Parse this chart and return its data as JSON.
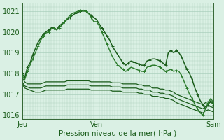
{
  "title": "Pression niveau de la mer( hPa )",
  "bg_color": "#daf0e4",
  "grid_color": "#aacfbc",
  "line_color_dark": "#1a5c1a",
  "line_color_med": "#2a7a2a",
  "ylim": [
    1015.8,
    1021.4
  ],
  "yticks": [
    1016,
    1017,
    1018,
    1019,
    1020,
    1021
  ],
  "n_points": 73,
  "ven_idx": 28,
  "sam_idx": 72,
  "xtick_positions": [
    0,
    28,
    72
  ],
  "xtick_labels": [
    "Jeu",
    "Ven",
    "Sam"
  ],
  "series": {
    "s0": [
      1018.0,
      1017.8,
      1018.3,
      1018.5,
      1018.9,
      1019.2,
      1019.5,
      1019.7,
      1019.9,
      1020.0,
      1020.1,
      1020.2,
      1020.2,
      1020.1,
      1020.3,
      1020.4,
      1020.5,
      1020.6,
      1020.7,
      1020.8,
      1020.9,
      1020.95,
      1021.0,
      1021.05,
      1021.0,
      1020.9,
      1020.8,
      1020.7,
      1020.6,
      1020.4,
      1020.2,
      1020.0,
      1019.8,
      1019.6,
      1019.3,
      1019.1,
      1018.9,
      1018.7,
      1018.5,
      1018.4,
      1018.5,
      1018.6,
      1018.55,
      1018.5,
      1018.45,
      1018.4,
      1018.4,
      1018.6,
      1018.65,
      1018.7,
      1018.7,
      1018.65,
      1018.6,
      1018.5,
      1018.4,
      1019.0,
      1019.1,
      1019.0,
      1019.1,
      1019.0,
      1018.8,
      1018.5,
      1018.2,
      1018.0,
      1017.7,
      1017.3,
      1017.0,
      1016.7,
      1016.5,
      1016.3,
      1016.5,
      1016.7,
      1016.5
    ],
    "s1": [
      1017.9,
      1017.7,
      1018.1,
      1018.4,
      1018.7,
      1019.0,
      1019.3,
      1019.6,
      1019.8,
      1019.95,
      1020.0,
      1020.15,
      1020.2,
      1020.1,
      1020.2,
      1020.35,
      1020.5,
      1020.65,
      1020.8,
      1020.9,
      1020.95,
      1021.0,
      1021.05,
      1021.0,
      1021.0,
      1020.9,
      1020.7,
      1020.5,
      1020.5,
      1020.3,
      1020.0,
      1019.7,
      1019.4,
      1019.1,
      1018.8,
      1018.6,
      1018.4,
      1018.3,
      1018.2,
      1018.1,
      1018.2,
      1018.3,
      1018.25,
      1018.2,
      1018.15,
      1018.1,
      1018.1,
      1018.3,
      1018.35,
      1018.4,
      1018.4,
      1018.35,
      1018.3,
      1018.2,
      1018.1,
      1018.15,
      1018.2,
      1018.1,
      1018.15,
      1018.1,
      1017.9,
      1017.6,
      1017.3,
      1017.0,
      1016.8,
      1016.5,
      1016.3,
      1016.1,
      1016.0,
      1016.3,
      1016.6,
      1016.8,
      1016.6
    ],
    "s2": [
      1017.8,
      1017.6,
      1017.5,
      1017.5,
      1017.5,
      1017.5,
      1017.5,
      1017.5,
      1017.55,
      1017.6,
      1017.6,
      1017.6,
      1017.6,
      1017.6,
      1017.6,
      1017.6,
      1017.6,
      1017.65,
      1017.65,
      1017.65,
      1017.65,
      1017.65,
      1017.65,
      1017.65,
      1017.65,
      1017.65,
      1017.6,
      1017.6,
      1017.6,
      1017.6,
      1017.6,
      1017.6,
      1017.6,
      1017.6,
      1017.55,
      1017.55,
      1017.55,
      1017.55,
      1017.5,
      1017.5,
      1017.5,
      1017.5,
      1017.5,
      1017.5,
      1017.45,
      1017.45,
      1017.4,
      1017.4,
      1017.4,
      1017.3,
      1017.3,
      1017.3,
      1017.25,
      1017.25,
      1017.2,
      1017.2,
      1017.15,
      1017.1,
      1017.0,
      1016.95,
      1016.9,
      1016.85,
      1016.8,
      1016.75,
      1016.7,
      1016.65,
      1016.6,
      1016.55,
      1016.5,
      1016.6,
      1016.65,
      1016.6,
      1016.55
    ],
    "s3": [
      1017.6,
      1017.4,
      1017.35,
      1017.3,
      1017.3,
      1017.3,
      1017.3,
      1017.3,
      1017.35,
      1017.4,
      1017.4,
      1017.4,
      1017.4,
      1017.4,
      1017.4,
      1017.4,
      1017.4,
      1017.45,
      1017.45,
      1017.45,
      1017.45,
      1017.45,
      1017.45,
      1017.45,
      1017.45,
      1017.45,
      1017.4,
      1017.4,
      1017.4,
      1017.4,
      1017.4,
      1017.4,
      1017.4,
      1017.4,
      1017.35,
      1017.35,
      1017.35,
      1017.35,
      1017.3,
      1017.3,
      1017.3,
      1017.3,
      1017.3,
      1017.3,
      1017.25,
      1017.25,
      1017.2,
      1017.2,
      1017.2,
      1017.1,
      1017.1,
      1017.1,
      1017.05,
      1017.05,
      1017.0,
      1017.0,
      1016.95,
      1016.9,
      1016.8,
      1016.75,
      1016.7,
      1016.65,
      1016.6,
      1016.55,
      1016.5,
      1016.45,
      1016.4,
      1016.35,
      1016.3,
      1016.4,
      1016.45,
      1016.4,
      1016.35
    ],
    "s4": [
      1017.5,
      1017.3,
      1017.25,
      1017.2,
      1017.15,
      1017.1,
      1017.1,
      1017.1,
      1017.15,
      1017.2,
      1017.2,
      1017.2,
      1017.2,
      1017.2,
      1017.2,
      1017.2,
      1017.2,
      1017.25,
      1017.25,
      1017.25,
      1017.25,
      1017.25,
      1017.25,
      1017.25,
      1017.25,
      1017.25,
      1017.2,
      1017.2,
      1017.2,
      1017.2,
      1017.2,
      1017.2,
      1017.2,
      1017.2,
      1017.15,
      1017.15,
      1017.15,
      1017.15,
      1017.1,
      1017.1,
      1017.1,
      1017.1,
      1017.1,
      1017.1,
      1017.05,
      1017.05,
      1017.0,
      1017.0,
      1017.0,
      1016.9,
      1016.9,
      1016.9,
      1016.85,
      1016.85,
      1016.8,
      1016.8,
      1016.75,
      1016.7,
      1016.6,
      1016.55,
      1016.5,
      1016.45,
      1016.4,
      1016.35,
      1016.3,
      1016.25,
      1016.2,
      1016.15,
      1016.1,
      1016.2,
      1016.25,
      1016.2,
      1016.15
    ]
  }
}
